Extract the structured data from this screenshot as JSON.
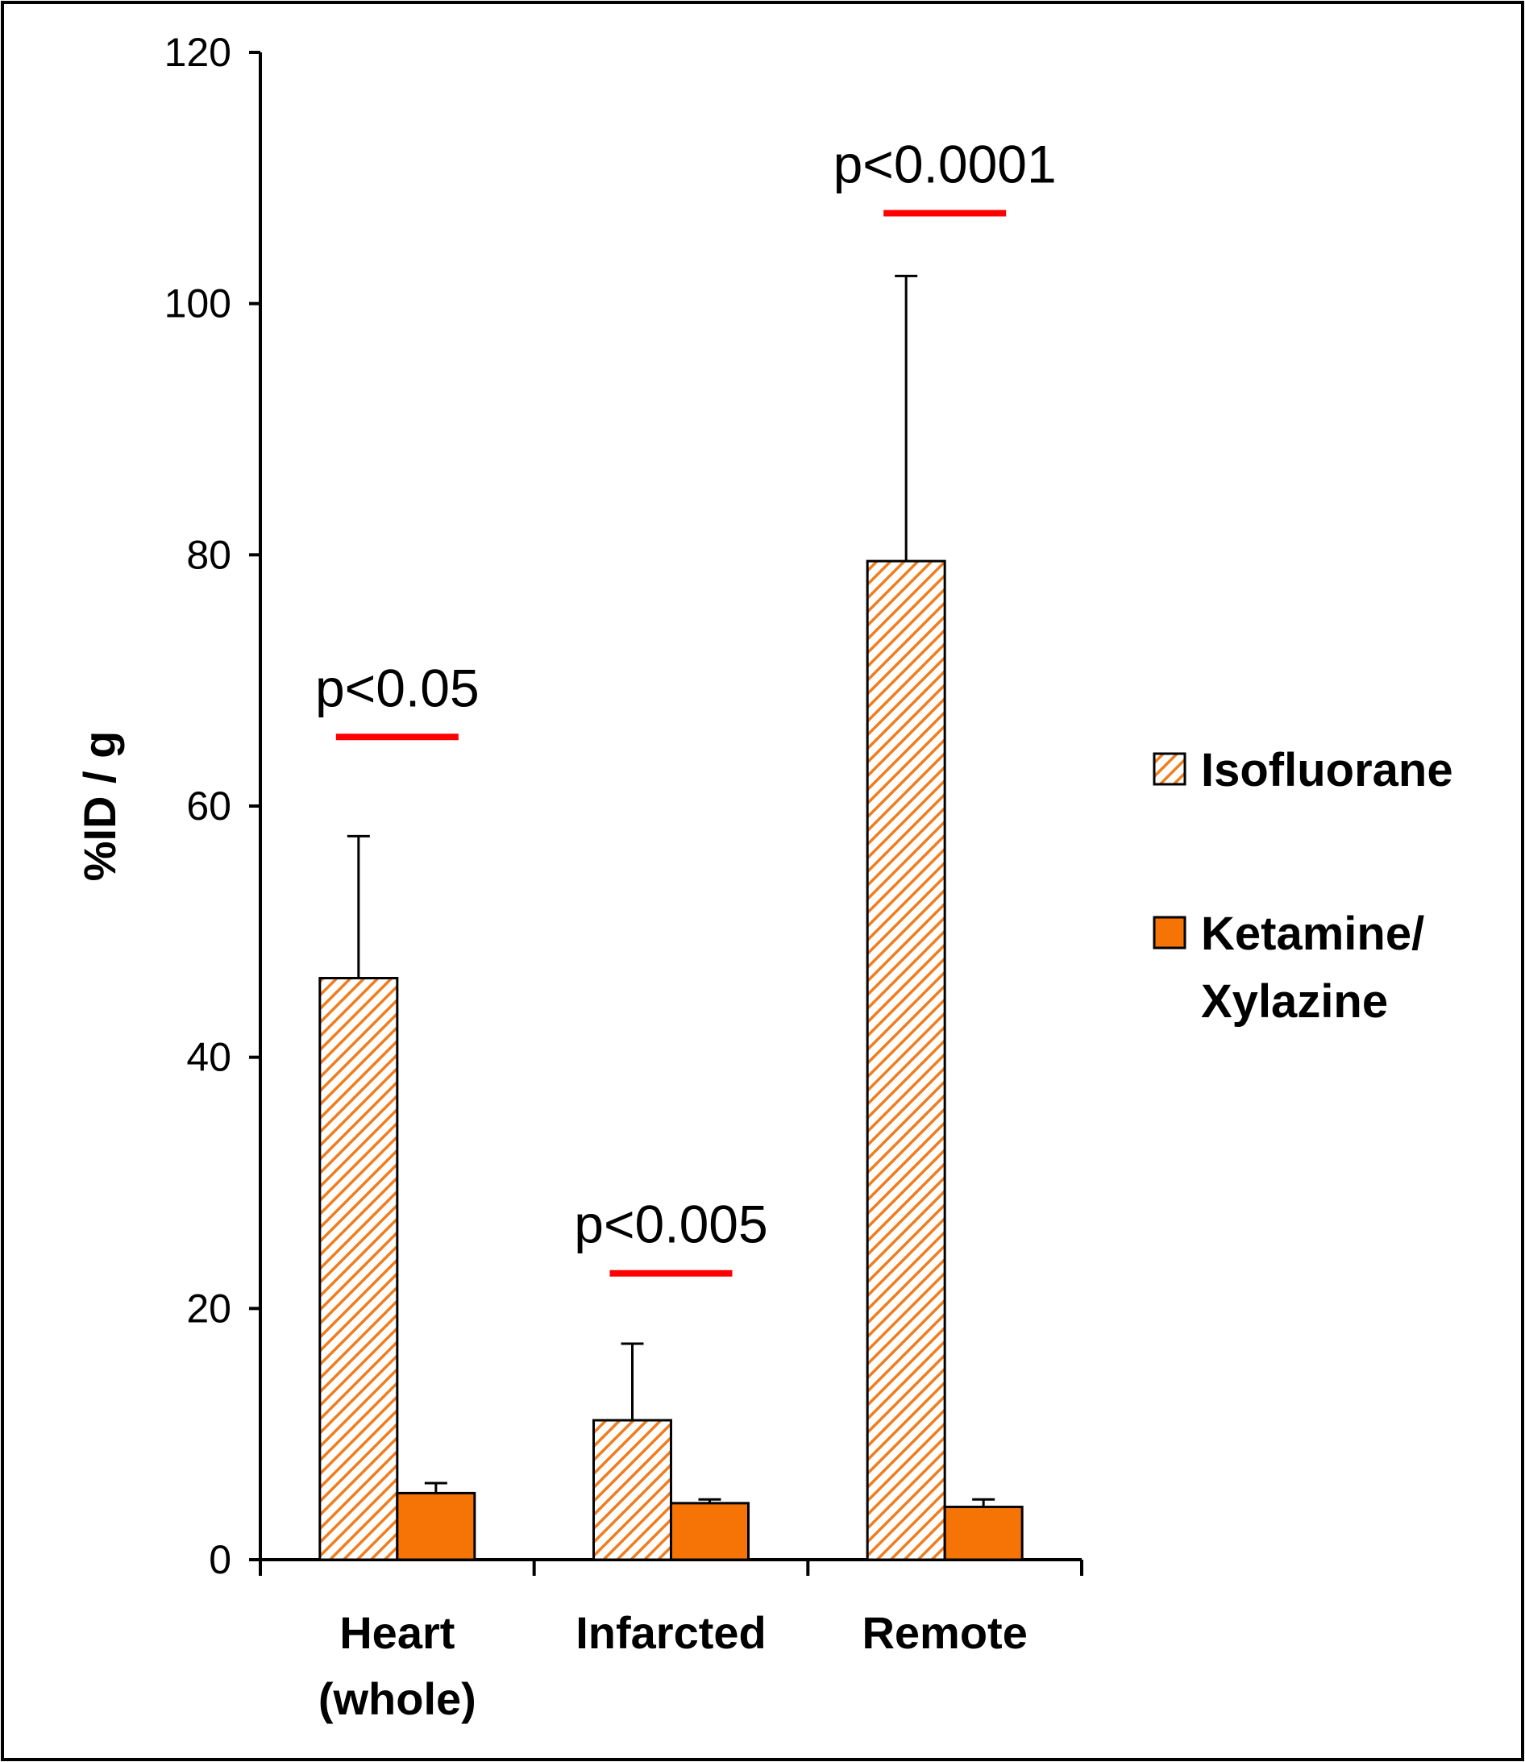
{
  "chart_data": {
    "type": "bar",
    "title": "",
    "xlabel": "",
    "ylabel": "%ID / g",
    "ylim": [
      0,
      120
    ],
    "yticks": [
      0,
      20,
      40,
      60,
      80,
      100,
      120
    ],
    "grid": false,
    "legend_position": "right",
    "categories": [
      [
        "Heart",
        "(whole)"
      ],
      [
        "Infarcted"
      ],
      [
        "Remote"
      ]
    ],
    "series": [
      {
        "name": "Isofluorane",
        "label_lines": [
          "Isofluorane"
        ],
        "fill": "hatched",
        "color": "#F07D1E",
        "values": [
          46.3,
          11.1,
          79.5
        ],
        "errors": [
          11.3,
          6.1,
          22.7
        ]
      },
      {
        "name": "Ketamine/ Xylazine",
        "label_lines": [
          "Ketamine/",
          "Xylazine"
        ],
        "fill": "solid",
        "color": "#F57405",
        "values": [
          5.3,
          4.5,
          4.2
        ],
        "errors": [
          0.8,
          0.3,
          0.6
        ]
      }
    ],
    "annotations": [
      {
        "category_index": 0,
        "text": "p<0.05",
        "y": 65.5
      },
      {
        "category_index": 1,
        "text": "p<0.005",
        "y": 22.8
      },
      {
        "category_index": 2,
        "text": "p<0.0001",
        "y": 107.2
      }
    ],
    "colors": {
      "axis": "#000000",
      "significance_line": "#FF0000",
      "hatch_stroke": "#F07D1E",
      "hatch_background": "#FFFFFF"
    }
  }
}
